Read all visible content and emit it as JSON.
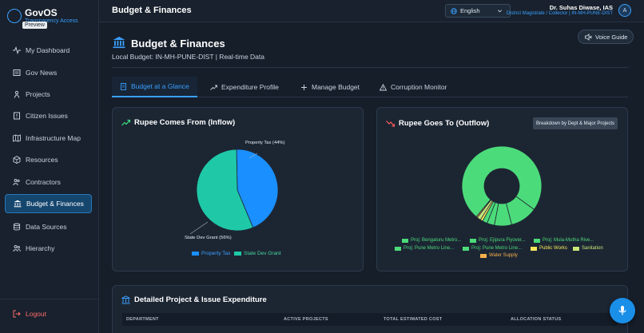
{
  "app": {
    "name": "GovOS",
    "subtitle": "Transparency Access",
    "preview_badge": "Preview"
  },
  "sidebar": {
    "items": [
      {
        "label": "My Dashboard",
        "icon": "activity-icon"
      },
      {
        "label": "Gov News",
        "icon": "newspaper-icon"
      },
      {
        "label": "Projects",
        "icon": "person-icon"
      },
      {
        "label": "Citizen Issues",
        "icon": "alert-file-icon"
      },
      {
        "label": "Infrastructure Map",
        "icon": "map-icon"
      },
      {
        "label": "Resources",
        "icon": "box-icon"
      },
      {
        "label": "Contractors",
        "icon": "users-icon"
      },
      {
        "label": "Budget & Finances",
        "icon": "bank-icon",
        "active": true
      },
      {
        "label": "Data Sources",
        "icon": "database-icon"
      },
      {
        "label": "Hierarchy",
        "icon": "hierarchy-icon"
      }
    ],
    "logout_label": "Logout"
  },
  "header": {
    "title": "Budget & Finances",
    "language": "English",
    "user_name": "Dr. Suhas Diwase, IAS",
    "user_role": "District Magistrate / Collector | IN-MH-PUNE-DIST",
    "avatar_initial": "A"
  },
  "page": {
    "title": "Budget & Finances",
    "subtitle": "Local Budget: IN-MH-PUNE-DIST | Real-time Data",
    "voice_guide": "Voice Guide"
  },
  "tabs": [
    {
      "label": "Budget at a Glance",
      "active": true
    },
    {
      "label": "Expenditure Profile"
    },
    {
      "label": "Manage Budget"
    },
    {
      "label": "Corruption Monitor"
    }
  ],
  "inflow": {
    "title": "Rupee Comes From (Inflow)",
    "label_property": "Property Tax (44%)",
    "label_state": "State Dev Grant (56%)"
  },
  "outflow": {
    "title": "Rupee Goes To (Outflow)",
    "breakdown_button": "Breakdown by Dept & Major Projects"
  },
  "chart_data": [
    {
      "type": "pie",
      "title": "Rupee Comes From (Inflow)",
      "labels": [
        "Property Tax",
        "State Dev Grant"
      ],
      "values": [
        44,
        56
      ],
      "colors": [
        "#1a8fff",
        "#1fc9a8"
      ],
      "legend": "bottom"
    },
    {
      "type": "pie",
      "title": "Rupee Goes To (Outflow)",
      "donut": true,
      "labels": [
        "Proj: Bengaluru Metro...",
        "Proj: Ejipura Flyover...",
        "Proj: Mula-Mutha Rive...",
        "Proj: Pune Metro Line...",
        "Proj: Pune Metro Line...",
        "Public Works",
        "Sanitation",
        "Water Supply"
      ],
      "values": [
        74,
        11,
        7,
        3,
        2,
        1,
        1.5,
        0.5
      ],
      "colors": [
        "#4cdb7a",
        "#4cdb7a",
        "#4cdb7a",
        "#4cdb7a",
        "#4cdb7a",
        "#f5e65c",
        "#c9e87a",
        "#f5b04c"
      ],
      "legend": "bottom"
    }
  ],
  "detail": {
    "title": "Detailed Project & Issue Expenditure",
    "columns": [
      "DEPARTMENT",
      "ACTIVE PROJECTS",
      "TOTAL ESTIMATED COST",
      "ALLOCATION STATUS"
    ]
  }
}
